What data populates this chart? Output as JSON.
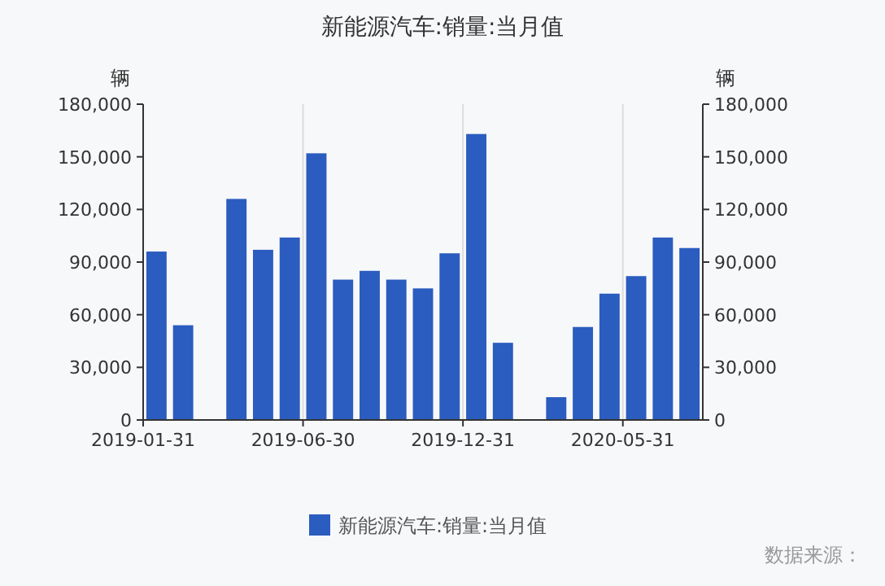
{
  "chart_data": {
    "type": "bar",
    "title": "新能源汽车:销量:当月值",
    "ylabel": "辆",
    "y2label": "辆",
    "categories": [
      "2019-01-31",
      null,
      null,
      null,
      null,
      null,
      "2019-06-30",
      null,
      null,
      null,
      null,
      null,
      "2019-12-31",
      null,
      null,
      null,
      null,
      null,
      "2020-05-31",
      null,
      null
    ],
    "series": [
      {
        "name": "新能源汽车:销量:当月值",
        "color": "#2b5cbf",
        "values": [
          96000,
          54000,
          null,
          126000,
          97000,
          104000,
          152000,
          80000,
          85000,
          80000,
          75000,
          95000,
          163000,
          44000,
          null,
          13000,
          53000,
          72000,
          82000,
          104000,
          98000
        ]
      }
    ],
    "ylim": [
      0,
      180000
    ],
    "yticks": [
      {
        "value": 0,
        "label": "0"
      },
      {
        "value": 30000,
        "label": "30,000"
      },
      {
        "value": 60000,
        "label": "60,000"
      },
      {
        "value": 90000,
        "label": "90,000"
      },
      {
        "value": 120000,
        "label": "120,000"
      },
      {
        "value": 150000,
        "label": "150,000"
      },
      {
        "value": 180000,
        "label": "180,000"
      }
    ],
    "y2lim": [
      0,
      180000
    ],
    "y2ticks": [
      {
        "value": 0,
        "label": "0"
      },
      {
        "value": 30000,
        "label": "30,000"
      },
      {
        "value": 60000,
        "label": "60,000"
      },
      {
        "value": 90000,
        "label": "90,000"
      },
      {
        "value": 120000,
        "label": "120,000"
      },
      {
        "value": 150000,
        "label": "150,000"
      },
      {
        "value": 180000,
        "label": "180,000"
      }
    ],
    "grid": "x",
    "legend": "bottom",
    "annotations": [
      "数据来源："
    ]
  }
}
